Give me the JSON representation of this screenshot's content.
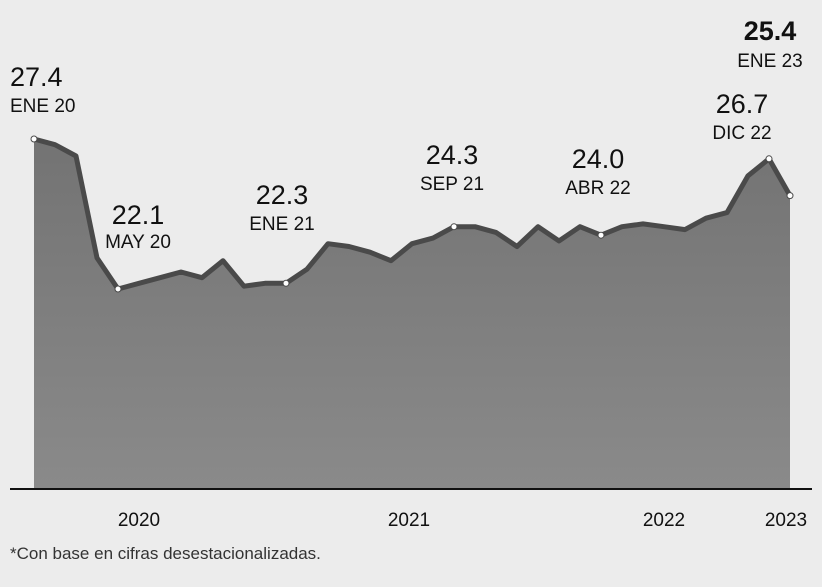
{
  "chart_data": {
    "type": "area",
    "title": "",
    "xlabel": "",
    "ylabel": "",
    "x_ticks": [
      "2020",
      "2021",
      "2022",
      "2023"
    ],
    "grid": false,
    "legend": "none",
    "area_color": "#7a7a7a",
    "line_color": "#4a4a4a",
    "series": [
      {
        "x": [
          "2020-01",
          "2020-02",
          "2020-03",
          "2020-04",
          "2020-05",
          "2020-06",
          "2020-07",
          "2020-08",
          "2020-09",
          "2020-10",
          "2020-11",
          "2020-12",
          "2021-01",
          "2021-02",
          "2021-03",
          "2021-04",
          "2021-05",
          "2021-06",
          "2021-07",
          "2021-08",
          "2021-09",
          "2021-10",
          "2021-11",
          "2021-12",
          "2022-01",
          "2022-02",
          "2022-03",
          "2022-04",
          "2022-05",
          "2022-06",
          "2022-07",
          "2022-08",
          "2022-09",
          "2022-10",
          "2022-11",
          "2022-12",
          "2023-01"
        ],
        "values": [
          27.4,
          27.2,
          26.8,
          23.2,
          22.1,
          22.3,
          22.5,
          22.7,
          22.5,
          23.1,
          22.2,
          22.3,
          22.3,
          22.8,
          23.7,
          23.6,
          23.4,
          23.1,
          23.7,
          23.9,
          24.3,
          24.3,
          24.1,
          23.6,
          24.3,
          23.8,
          24.3,
          24.0,
          24.3,
          24.4,
          24.3,
          24.2,
          24.6,
          24.8,
          26.1,
          26.7,
          25.4
        ]
      }
    ],
    "annotations": [
      {
        "x": "2020-01",
        "value": "27.4",
        "date": "ENE 20",
        "bold": false
      },
      {
        "x": "2020-05",
        "value": "22.1",
        "date": "MAY 20",
        "bold": false
      },
      {
        "x": "2021-01",
        "value": "22.3",
        "date": "ENE 21",
        "bold": false
      },
      {
        "x": "2021-09",
        "value": "24.3",
        "date": "SEP 21",
        "bold": false
      },
      {
        "x": "2022-04",
        "value": "24.0",
        "date": "ABR 22",
        "bold": false
      },
      {
        "x": "2022-12",
        "value": "26.7",
        "date": "DIC 22",
        "bold": false
      },
      {
        "x": "2023-01",
        "value": "25.4",
        "date": "ENE 23",
        "bold": true
      }
    ],
    "footnote": "*Con base en cifras desestacionalizadas."
  }
}
